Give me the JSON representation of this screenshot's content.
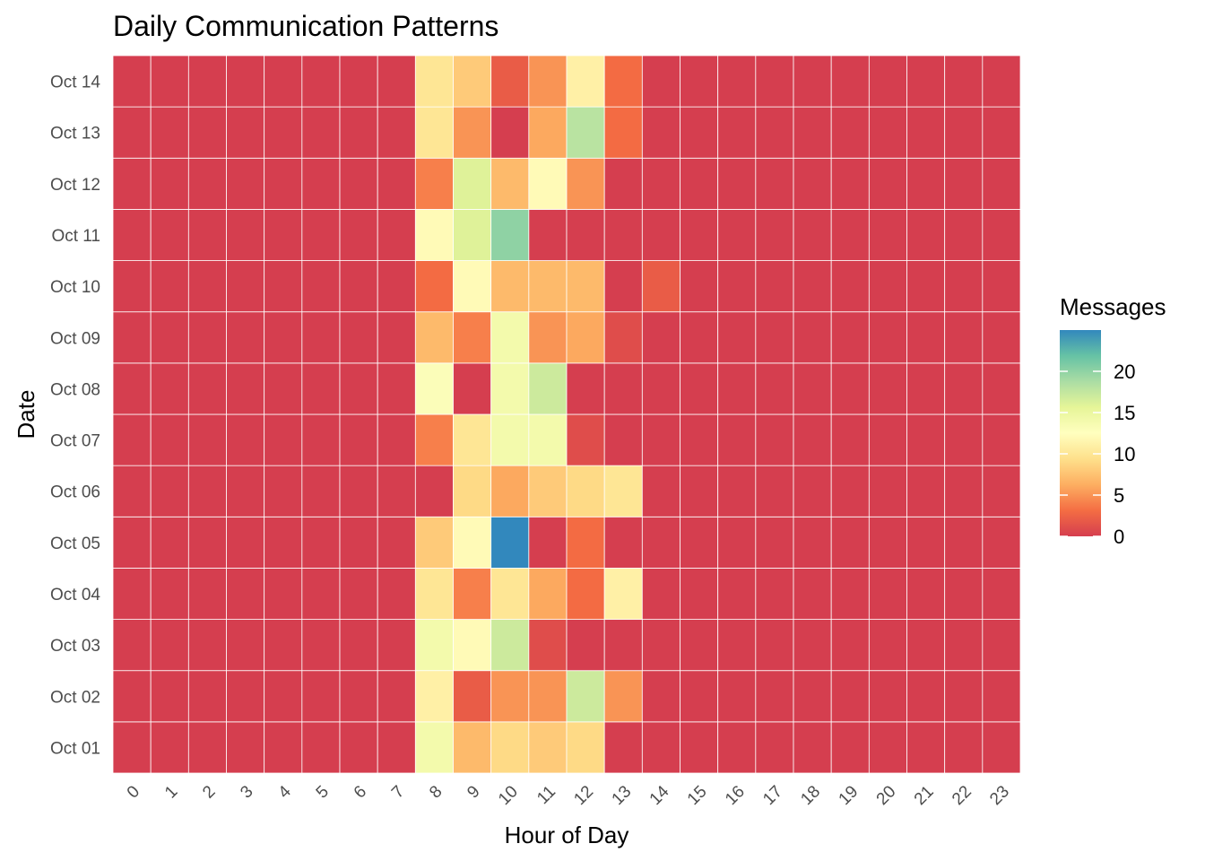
{
  "chart_data": {
    "type": "heatmap",
    "title": "Daily Communication Patterns",
    "xlabel": "Hour of Day",
    "ylabel": "Date",
    "x": [
      "0",
      "1",
      "2",
      "3",
      "4",
      "5",
      "6",
      "7",
      "8",
      "9",
      "10",
      "11",
      "12",
      "13",
      "14",
      "15",
      "16",
      "17",
      "18",
      "19",
      "20",
      "21",
      "22",
      "23"
    ],
    "y": [
      "Oct 01",
      "Oct 02",
      "Oct 03",
      "Oct 04",
      "Oct 05",
      "Oct 06",
      "Oct 07",
      "Oct 08",
      "Oct 09",
      "Oct 10",
      "Oct 11",
      "Oct 12",
      "Oct 13",
      "Oct 14"
    ],
    "values": [
      [
        0,
        0,
        0,
        0,
        0,
        0,
        0,
        0,
        14,
        7,
        9,
        8,
        9,
        0,
        0,
        0,
        0,
        0,
        0,
        0,
        0,
        0,
        0,
        0
      ],
      [
        0,
        0,
        0,
        0,
        0,
        0,
        0,
        0,
        11,
        2,
        5,
        5,
        17,
        5,
        0,
        0,
        0,
        0,
        0,
        0,
        0,
        0,
        0,
        0
      ],
      [
        0,
        0,
        0,
        0,
        0,
        0,
        0,
        0,
        14,
        12,
        17,
        1,
        0,
        0,
        0,
        0,
        0,
        0,
        0,
        0,
        0,
        0,
        0,
        0
      ],
      [
        0,
        0,
        0,
        0,
        0,
        0,
        0,
        0,
        10,
        4,
        10,
        6,
        3,
        11,
        0,
        0,
        0,
        0,
        0,
        0,
        0,
        0,
        0,
        0
      ],
      [
        0,
        0,
        0,
        0,
        0,
        0,
        0,
        0,
        8,
        12,
        25,
        0,
        3,
        0,
        0,
        0,
        0,
        0,
        0,
        0,
        0,
        0,
        0,
        0
      ],
      [
        0,
        0,
        0,
        0,
        0,
        0,
        0,
        0,
        0,
        9,
        6,
        8,
        9,
        10,
        0,
        0,
        0,
        0,
        0,
        0,
        0,
        0,
        0,
        0
      ],
      [
        0,
        0,
        0,
        0,
        0,
        0,
        0,
        0,
        4,
        10,
        14,
        14,
        1,
        0,
        0,
        0,
        0,
        0,
        0,
        0,
        0,
        0,
        0,
        0
      ],
      [
        0,
        0,
        0,
        0,
        0,
        0,
        0,
        0,
        13,
        0,
        14,
        17,
        0,
        0,
        0,
        0,
        0,
        0,
        0,
        0,
        0,
        0,
        0,
        0
      ],
      [
        0,
        0,
        0,
        0,
        0,
        0,
        0,
        0,
        7,
        4,
        14,
        5,
        6,
        1,
        0,
        0,
        0,
        0,
        0,
        0,
        0,
        0,
        0,
        0
      ],
      [
        0,
        0,
        0,
        0,
        0,
        0,
        0,
        0,
        3,
        12,
        7,
        7,
        7,
        0,
        2,
        0,
        0,
        0,
        0,
        0,
        0,
        0,
        0,
        0
      ],
      [
        0,
        0,
        0,
        0,
        0,
        0,
        0,
        0,
        12,
        16,
        20,
        0,
        0,
        0,
        0,
        0,
        0,
        0,
        0,
        0,
        0,
        0,
        0,
        0
      ],
      [
        0,
        0,
        0,
        0,
        0,
        0,
        0,
        0,
        4,
        16,
        7,
        12,
        5,
        0,
        0,
        0,
        0,
        0,
        0,
        0,
        0,
        0,
        0,
        0
      ],
      [
        0,
        0,
        0,
        0,
        0,
        0,
        0,
        0,
        10,
        5,
        0,
        6,
        18,
        3,
        0,
        0,
        0,
        0,
        0,
        0,
        0,
        0,
        0,
        0
      ],
      [
        0,
        0,
        0,
        0,
        0,
        0,
        0,
        0,
        10,
        8,
        2,
        5,
        11,
        3,
        0,
        0,
        0,
        0,
        0,
        0,
        0,
        0,
        0,
        0
      ]
    ],
    "value_range": [
      0,
      25
    ],
    "legend": {
      "title": "Messages",
      "placement": "right",
      "breaks": [
        0,
        5,
        10,
        15,
        20
      ]
    },
    "colors": [
      "#D53E4F",
      "#F46D43",
      "#FDAE61",
      "#FEE08B",
      "#FFFFBF",
      "#E6F598",
      "#ABDDA4",
      "#66C2A5",
      "#3288BD"
    ],
    "grid": false
  }
}
